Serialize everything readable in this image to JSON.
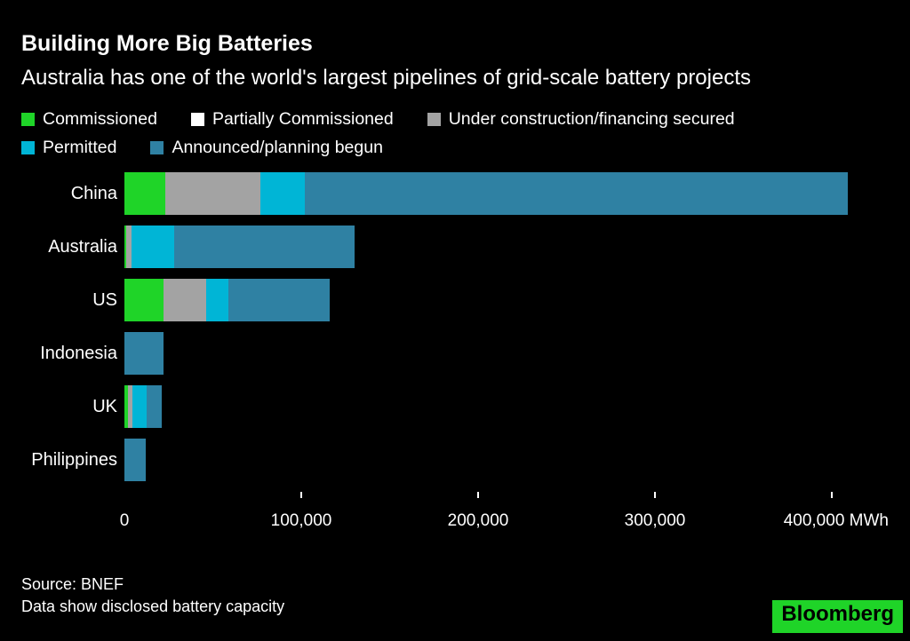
{
  "header": {
    "title": "Building More Big Batteries",
    "subtitle": "Australia has one of the world's largest pipelines of grid-scale battery projects"
  },
  "chart_data": {
    "type": "bar",
    "orientation": "horizontal",
    "title": "Building More Big Batteries",
    "subtitle": "Australia has one of the world's largest pipelines of grid-scale battery projects",
    "unit": "MWh",
    "xlabel": "MWh",
    "ylabel": "",
    "xlim": [
      0,
      432000
    ],
    "grid": false,
    "legend_position": "top",
    "categories": [
      "China",
      "Australia",
      "US",
      "Indonesia",
      "UK",
      "Philippines"
    ],
    "series": [
      {
        "name": "Commissioned",
        "color": "#1fd428",
        "values": [
          23000,
          1000,
          22000,
          0,
          2000,
          0
        ]
      },
      {
        "name": "Partially Commissioned",
        "color": "#ffffff",
        "values": [
          0,
          0,
          0,
          0,
          0,
          0
        ]
      },
      {
        "name": "Under construction/financing secured",
        "color": "#a3a3a3",
        "values": [
          54000,
          3000,
          24000,
          0,
          2500,
          0
        ]
      },
      {
        "name": "Permitted",
        "color": "#00b5d6",
        "values": [
          25000,
          24000,
          13000,
          0,
          8000,
          0
        ]
      },
      {
        "name": "Announced/planning begun",
        "color": "#2f81a3",
        "values": [
          307000,
          102000,
          57000,
          22000,
          8500,
          12000
        ]
      }
    ],
    "totals_estimated": [
      409000,
      130000,
      116000,
      22000,
      21000,
      12000
    ],
    "x_ticks": [
      {
        "value": 0,
        "label": "0",
        "align": "center",
        "mark": false
      },
      {
        "value": 100000,
        "label": "100,000",
        "align": "center",
        "mark": true
      },
      {
        "value": 200000,
        "label": "200,000",
        "align": "center",
        "mark": true
      },
      {
        "value": 300000,
        "label": "300,000",
        "align": "center",
        "mark": true
      },
      {
        "value": 400000,
        "label": "400,000 MWh",
        "align": "right",
        "mark": true
      }
    ]
  },
  "footer": {
    "source": "Source: BNEF",
    "note": "Data show disclosed battery capacity"
  },
  "brand": {
    "logo_text": "Bloomberg",
    "logo_bg": "#1fd428",
    "logo_fg": "#000000"
  },
  "colors": {
    "background": "#000000",
    "text": "#ffffff",
    "commissioned": "#1fd428",
    "partially_commissioned": "#ffffff",
    "under_construction": "#a3a3a3",
    "permitted": "#00b5d6",
    "announced": "#2f81a3"
  }
}
